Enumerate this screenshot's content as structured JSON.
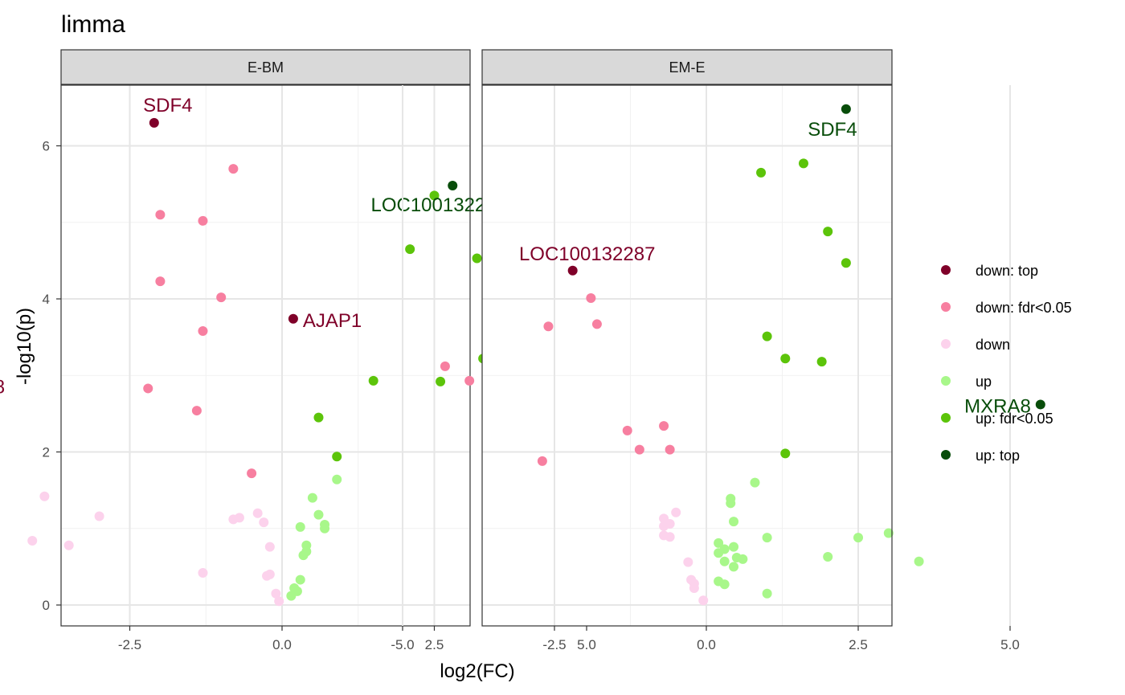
{
  "chart_data": {
    "type": "scatter",
    "title": "limma",
    "xlabel": "log2(FC)",
    "ylabel": "-log10(p)",
    "xlim": [
      -7.4,
      6.0
    ],
    "ylim": [
      -0.28,
      6.8
    ],
    "x_ticks": [
      -5.0,
      -2.5,
      0.0,
      2.5,
      5.0
    ],
    "x_tick_labels": [
      "-5.0",
      "-2.5",
      "0.0",
      "2.5",
      "5.0"
    ],
    "y_ticks": [
      0,
      2,
      4,
      6
    ],
    "y_tick_labels": [
      "0",
      "2",
      "4",
      "6"
    ],
    "grid": true,
    "legend_position": "right",
    "categories": [
      {
        "key": "down_top",
        "label": "down: top",
        "color": "#7f0029"
      },
      {
        "key": "down_fdr",
        "label": "down: fdr<0.05",
        "color": "#f77fa0"
      },
      {
        "key": "down",
        "label": "down",
        "color": "#fcd2ec"
      },
      {
        "key": "up",
        "label": "up",
        "color": "#a8f78a"
      },
      {
        "key": "up_fdr",
        "label": "up: fdr<0.05",
        "color": "#5cc40a"
      },
      {
        "key": "up_top",
        "label": "up: top",
        "color": "#084d0a"
      }
    ],
    "panels": [
      {
        "name": "E-BM",
        "points": [
          {
            "x": -2.1,
            "y": 6.3,
            "c": "down_top"
          },
          {
            "x": -5.8,
            "y": 2.86,
            "c": "down_top"
          },
          {
            "x": -0.8,
            "y": 5.7,
            "c": "down_fdr"
          },
          {
            "x": -2.0,
            "y": 5.1,
            "c": "down_fdr"
          },
          {
            "x": -1.3,
            "y": 5.02,
            "c": "down_fdr"
          },
          {
            "x": -2.0,
            "y": 4.23,
            "c": "down_fdr"
          },
          {
            "x": -1.0,
            "y": 4.02,
            "c": "down_fdr"
          },
          {
            "x": -1.3,
            "y": 3.58,
            "c": "down_fdr"
          },
          {
            "x": -2.2,
            "y": 2.83,
            "c": "down_fdr"
          },
          {
            "x": -1.4,
            "y": 2.54,
            "c": "down_fdr"
          },
          {
            "x": -0.5,
            "y": 1.72,
            "c": "down_fdr"
          },
          {
            "x": -3.9,
            "y": 1.42,
            "c": "down"
          },
          {
            "x": -3.0,
            "y": 1.16,
            "c": "down"
          },
          {
            "x": -4.1,
            "y": 0.84,
            "c": "down"
          },
          {
            "x": -3.5,
            "y": 0.78,
            "c": "down"
          },
          {
            "x": -0.4,
            "y": 1.2,
            "c": "down"
          },
          {
            "x": -0.7,
            "y": 1.14,
            "c": "down"
          },
          {
            "x": -0.8,
            "y": 1.12,
            "c": "down"
          },
          {
            "x": -0.3,
            "y": 1.08,
            "c": "down"
          },
          {
            "x": -0.2,
            "y": 0.76,
            "c": "down"
          },
          {
            "x": -1.3,
            "y": 0.42,
            "c": "down"
          },
          {
            "x": -0.2,
            "y": 0.4,
            "c": "down"
          },
          {
            "x": -0.25,
            "y": 0.38,
            "c": "down"
          },
          {
            "x": -0.1,
            "y": 0.15,
            "c": "down"
          },
          {
            "x": -0.05,
            "y": 0.05,
            "c": "down"
          },
          {
            "x": 2.8,
            "y": 5.48,
            "c": "up_top"
          },
          {
            "x": 5.1,
            "y": 4.45,
            "c": "up_top"
          },
          {
            "x": 2.5,
            "y": 5.35,
            "c": "up_fdr"
          },
          {
            "x": 2.1,
            "y": 4.65,
            "c": "up_fdr"
          },
          {
            "x": 3.2,
            "y": 4.53,
            "c": "up_fdr"
          },
          {
            "x": 4.6,
            "y": 3.82,
            "c": "up_fdr"
          },
          {
            "x": 3.3,
            "y": 3.22,
            "c": "up_fdr"
          },
          {
            "x": 1.5,
            "y": 2.93,
            "c": "up_fdr"
          },
          {
            "x": 2.6,
            "y": 2.92,
            "c": "up_fdr"
          },
          {
            "x": 0.6,
            "y": 2.45,
            "c": "up_fdr"
          },
          {
            "x": 0.9,
            "y": 1.94,
            "c": "up_fdr"
          },
          {
            "x": 0.9,
            "y": 1.64,
            "c": "up"
          },
          {
            "x": 0.5,
            "y": 1.4,
            "c": "up"
          },
          {
            "x": 0.6,
            "y": 1.18,
            "c": "up"
          },
          {
            "x": 0.7,
            "y": 1.05,
            "c": "up"
          },
          {
            "x": 0.3,
            "y": 1.02,
            "c": "up"
          },
          {
            "x": 0.7,
            "y": 1.0,
            "c": "up"
          },
          {
            "x": 0.4,
            "y": 0.78,
            "c": "up"
          },
          {
            "x": 0.4,
            "y": 0.7,
            "c": "up"
          },
          {
            "x": 0.35,
            "y": 0.65,
            "c": "up"
          },
          {
            "x": 0.3,
            "y": 0.33,
            "c": "up"
          },
          {
            "x": 0.2,
            "y": 0.22,
            "c": "up"
          },
          {
            "x": 0.25,
            "y": 0.18,
            "c": "up"
          },
          {
            "x": 0.15,
            "y": 0.12,
            "c": "up"
          }
        ],
        "labels": [
          {
            "text": "SDF4",
            "x": -2.1,
            "y": 6.3,
            "c": "down_top"
          },
          {
            "text": "MXRA8",
            "x": -5.8,
            "y": 2.86,
            "c": "down_top"
          },
          {
            "text": "LOC100132287",
            "x": 2.8,
            "y": 5.48,
            "c": "up_top"
          },
          {
            "text": "AJAP1",
            "x": 5.1,
            "y": 4.45,
            "c": "up_top"
          }
        ]
      },
      {
        "name": "EM-E",
        "points": [
          {
            "x": -2.2,
            "y": 4.37,
            "c": "down_top"
          },
          {
            "x": -6.8,
            "y": 3.74,
            "c": "down_top"
          },
          {
            "x": -1.9,
            "y": 4.01,
            "c": "down_fdr"
          },
          {
            "x": -2.6,
            "y": 3.64,
            "c": "down_fdr"
          },
          {
            "x": -1.8,
            "y": 3.67,
            "c": "down_fdr"
          },
          {
            "x": -4.3,
            "y": 3.12,
            "c": "down_fdr"
          },
          {
            "x": -3.9,
            "y": 2.93,
            "c": "down_fdr"
          },
          {
            "x": -0.7,
            "y": 2.34,
            "c": "down_fdr"
          },
          {
            "x": -1.3,
            "y": 2.28,
            "c": "down_fdr"
          },
          {
            "x": -1.1,
            "y": 2.03,
            "c": "down_fdr"
          },
          {
            "x": -0.6,
            "y": 2.03,
            "c": "down_fdr"
          },
          {
            "x": -2.7,
            "y": 1.88,
            "c": "down_fdr"
          },
          {
            "x": -0.5,
            "y": 1.21,
            "c": "down"
          },
          {
            "x": -0.7,
            "y": 1.13,
            "c": "down"
          },
          {
            "x": -0.6,
            "y": 1.06,
            "c": "down"
          },
          {
            "x": -0.7,
            "y": 1.03,
            "c": "down"
          },
          {
            "x": -0.7,
            "y": 0.91,
            "c": "down"
          },
          {
            "x": -0.6,
            "y": 0.89,
            "c": "down"
          },
          {
            "x": -0.3,
            "y": 0.56,
            "c": "down"
          },
          {
            "x": -0.25,
            "y": 0.33,
            "c": "down"
          },
          {
            "x": -0.2,
            "y": 0.28,
            "c": "down"
          },
          {
            "x": -0.2,
            "y": 0.22,
            "c": "down"
          },
          {
            "x": -0.05,
            "y": 0.06,
            "c": "down"
          },
          {
            "x": 2.3,
            "y": 6.48,
            "c": "up_top"
          },
          {
            "x": 5.5,
            "y": 2.62,
            "c": "up_top"
          },
          {
            "x": 0.9,
            "y": 5.65,
            "c": "up_fdr"
          },
          {
            "x": 1.6,
            "y": 5.77,
            "c": "up_fdr"
          },
          {
            "x": 2.0,
            "y": 4.88,
            "c": "up_fdr"
          },
          {
            "x": 2.3,
            "y": 4.47,
            "c": "up_fdr"
          },
          {
            "x": 1.0,
            "y": 3.51,
            "c": "up_fdr"
          },
          {
            "x": 1.3,
            "y": 3.22,
            "c": "up_fdr"
          },
          {
            "x": 1.9,
            "y": 3.18,
            "c": "up_fdr"
          },
          {
            "x": 1.3,
            "y": 1.98,
            "c": "up_fdr"
          },
          {
            "x": 0.8,
            "y": 1.6,
            "c": "up"
          },
          {
            "x": 0.4,
            "y": 1.39,
            "c": "up"
          },
          {
            "x": 0.4,
            "y": 1.33,
            "c": "up"
          },
          {
            "x": 0.45,
            "y": 1.09,
            "c": "up"
          },
          {
            "x": 3.0,
            "y": 0.94,
            "c": "up"
          },
          {
            "x": 1.0,
            "y": 0.88,
            "c": "up"
          },
          {
            "x": 2.5,
            "y": 0.88,
            "c": "up"
          },
          {
            "x": 0.2,
            "y": 0.81,
            "c": "up"
          },
          {
            "x": 0.45,
            "y": 0.76,
            "c": "up"
          },
          {
            "x": 0.3,
            "y": 0.73,
            "c": "up"
          },
          {
            "x": 0.2,
            "y": 0.68,
            "c": "up"
          },
          {
            "x": 2.0,
            "y": 0.63,
            "c": "up"
          },
          {
            "x": 0.5,
            "y": 0.62,
            "c": "up"
          },
          {
            "x": 0.6,
            "y": 0.6,
            "c": "up"
          },
          {
            "x": 3.5,
            "y": 0.57,
            "c": "up"
          },
          {
            "x": 0.3,
            "y": 0.57,
            "c": "up"
          },
          {
            "x": 0.45,
            "y": 0.5,
            "c": "up"
          },
          {
            "x": 0.2,
            "y": 0.31,
            "c": "up"
          },
          {
            "x": 0.3,
            "y": 0.27,
            "c": "up"
          },
          {
            "x": 1.0,
            "y": 0.15,
            "c": "up"
          }
        ],
        "labels": [
          {
            "text": "SDF4",
            "x": 2.3,
            "y": 6.48,
            "c": "up_top"
          },
          {
            "text": "MXRA8",
            "x": 5.5,
            "y": 2.62,
            "c": "up_top"
          },
          {
            "text": "LOC100132287",
            "x": -2.2,
            "y": 4.37,
            "c": "down_top"
          },
          {
            "text": "AJAP1",
            "x": -6.8,
            "y": 3.74,
            "c": "down_top"
          }
        ]
      }
    ]
  }
}
